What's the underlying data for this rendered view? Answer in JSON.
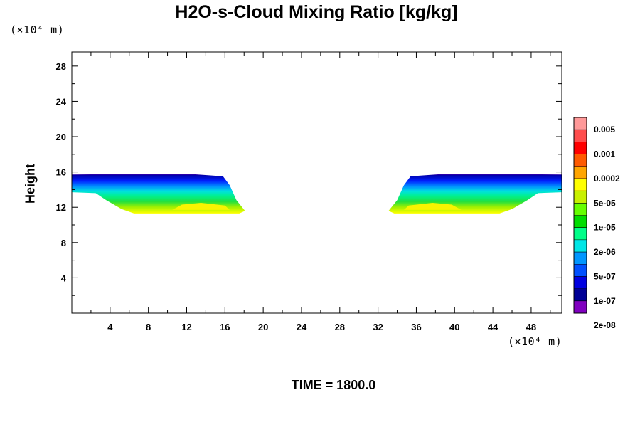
{
  "chart_data": {
    "type": "contour",
    "title": "H2O-s-Cloud Mixing Ratio [kg/kg]",
    "ylabel": "Height",
    "x_unit": "(×10⁴ m)",
    "y_unit": "(×10⁴ m)",
    "footer": "TIME = 1800.0",
    "xlim": [
      0,
      51.2
    ],
    "ylim": [
      0,
      29.6
    ],
    "xticks": [
      4,
      8,
      12,
      16,
      20,
      24,
      28,
      32,
      36,
      40,
      44,
      48
    ],
    "yticks": [
      4,
      8,
      12,
      16,
      20,
      24,
      28
    ],
    "colorbar": {
      "labels": [
        "0.005",
        "0.001",
        "0.0002",
        "5e-05",
        "1e-05",
        "2e-06",
        "5e-07",
        "1e-07",
        "2e-08"
      ],
      "colors": [
        "#ff9999",
        "#ff4d4d",
        "#ff0000",
        "#ff5a00",
        "#ffa500",
        "#ffff00",
        "#c8f000",
        "#66ff00",
        "#00dd00",
        "#00ff88",
        "#00e6e6",
        "#0096ff",
        "#0050ff",
        "#0000e0",
        "#000096",
        "#8000c0"
      ]
    },
    "regions": [
      {
        "name": "left cloud",
        "boundary": [
          [
            0,
            15.7
          ],
          [
            7.5,
            15.8
          ],
          [
            12,
            15.8
          ],
          [
            15.8,
            15.5
          ],
          [
            16.5,
            14.5
          ],
          [
            17.2,
            12.8
          ],
          [
            18.1,
            11.6
          ],
          [
            17.5,
            11.3
          ],
          [
            6.5,
            11.3
          ],
          [
            5.2,
            11.8
          ],
          [
            3.6,
            12.8
          ],
          [
            2.5,
            13.6
          ],
          [
            0,
            13.7
          ]
        ],
        "core": [
          [
            10.5,
            11.7
          ],
          [
            16.5,
            11.7
          ],
          [
            16,
            12.2
          ],
          [
            13.5,
            12.5
          ],
          [
            11.5,
            12.3
          ]
        ]
      },
      {
        "name": "right cloud",
        "boundary": [
          [
            51.2,
            15.7
          ],
          [
            43.7,
            15.8
          ],
          [
            39.2,
            15.8
          ],
          [
            35.4,
            15.5
          ],
          [
            34.7,
            14.5
          ],
          [
            34,
            12.8
          ],
          [
            33.1,
            11.6
          ],
          [
            33.7,
            11.3
          ],
          [
            44.7,
            11.3
          ],
          [
            46,
            11.8
          ],
          [
            47.6,
            12.8
          ],
          [
            48.7,
            13.6
          ],
          [
            51.2,
            13.7
          ]
        ],
        "core": [
          [
            40.7,
            11.7
          ],
          [
            34.7,
            11.7
          ],
          [
            35.2,
            12.2
          ],
          [
            37.7,
            12.5
          ],
          [
            39.7,
            12.3
          ]
        ]
      }
    ]
  }
}
